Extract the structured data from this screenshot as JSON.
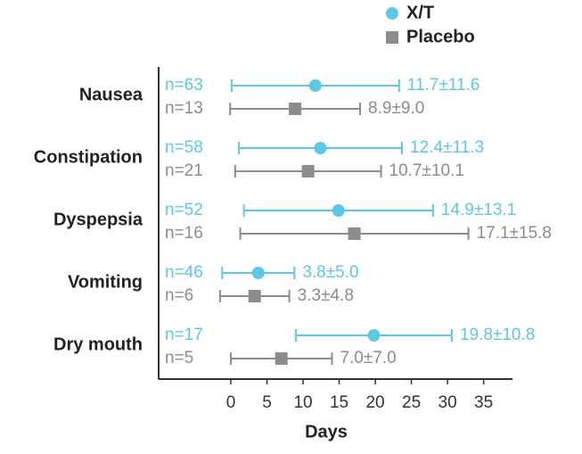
{
  "chart_data": {
    "type": "errorbar-dot",
    "categories": [
      "Nausea",
      "Constipation",
      "Dyspepsia",
      "Vomiting",
      "Dry mouth"
    ],
    "series": [
      {
        "name": "X/T",
        "color": "#5bc8e8",
        "marker": "circle",
        "values": [
          11.7,
          12.4,
          14.9,
          3.8,
          19.8
        ],
        "errors": [
          11.6,
          11.3,
          13.1,
          5.0,
          10.8
        ],
        "value_labels": [
          "11.7±11.6",
          "12.4±11.3",
          "14.9±13.1",
          "3.8±5.0",
          "19.8±10.8"
        ],
        "n_labels": [
          "n=63",
          "n=58",
          "n=52",
          "n=46",
          "n=17"
        ]
      },
      {
        "name": "Placebo",
        "color": "#8c8c8c",
        "marker": "square",
        "values": [
          8.9,
          10.7,
          17.1,
          3.3,
          7.0
        ],
        "errors": [
          9.0,
          10.1,
          15.8,
          4.8,
          7.0
        ],
        "value_labels": [
          "8.9±9.0",
          "10.7±10.1",
          "17.1±15.8",
          "3.3±4.8",
          "7.0±7.0"
        ],
        "n_labels": [
          "n=13",
          "n=21",
          "n=16",
          "n=6",
          "n=5"
        ]
      }
    ],
    "x_label": "Days",
    "xlim": [
      -10,
      39
    ],
    "xticks": [
      0,
      5,
      10,
      15,
      20,
      25,
      30,
      35
    ],
    "legend": "top-right"
  }
}
